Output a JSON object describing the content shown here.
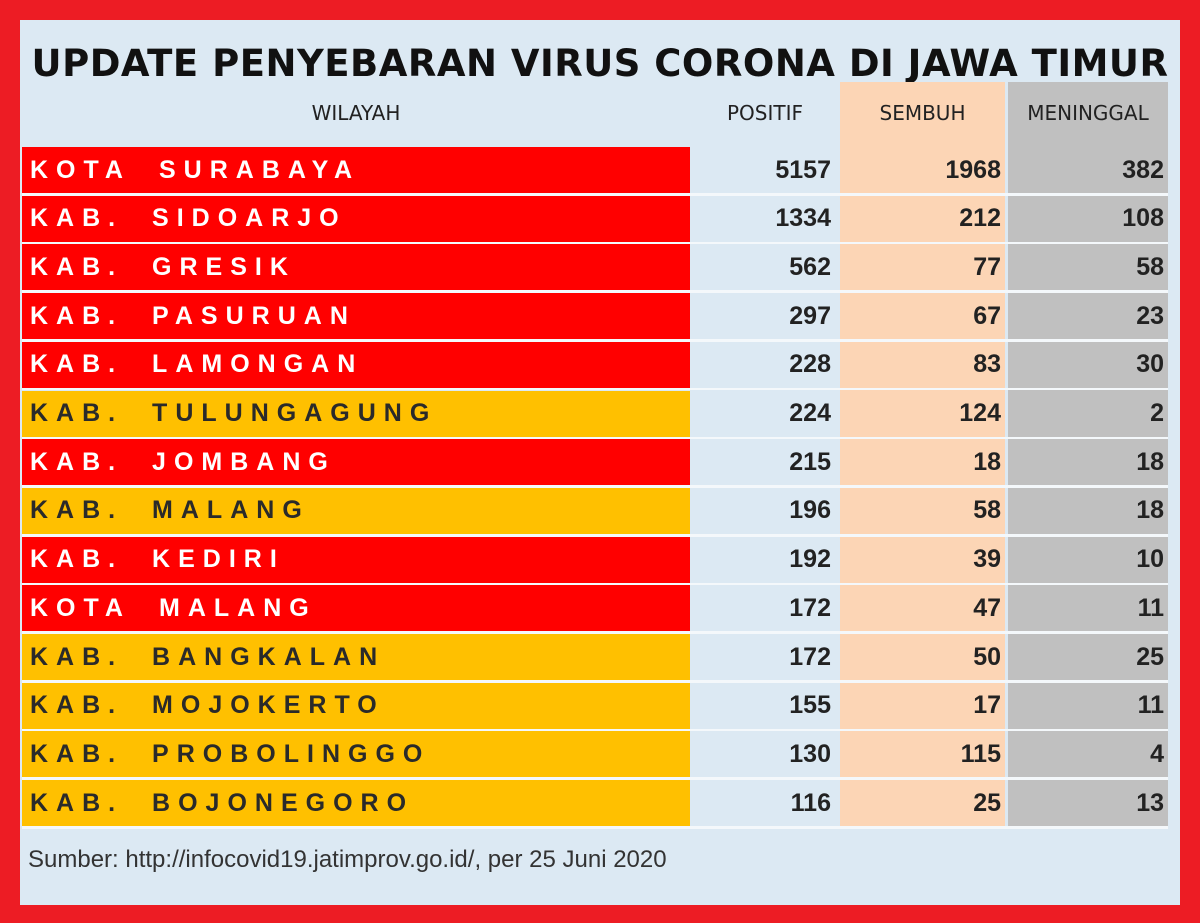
{
  "title": "UPDATE PENYEBARAN VIRUS CORONA DI JAWA TIMUR",
  "table": {
    "headers": [
      "WILAYAH",
      "POSITIF",
      "SEMBUH",
      "MENINGGAL"
    ],
    "header_colors": [
      "#dce9f3",
      "#dce9f3",
      "#fcd5b5",
      "#c0c0c0"
    ],
    "rows": [
      [
        "KOTA SURABAYA",
        "5157",
        "1968",
        "382"
      ],
      [
        "KAB. SIDOARJO",
        "1334",
        "212",
        "108"
      ],
      [
        "KAB. GRESIK",
        "562",
        "77",
        "58"
      ],
      [
        "KAB. PASURUAN",
        "297",
        "67",
        "23"
      ],
      [
        "KAB. LAMONGAN",
        "228",
        "83",
        "30"
      ],
      [
        "KAB. TULUNGAGUNG",
        "224",
        "124",
        "2"
      ],
      [
        "KAB. JOMBANG",
        "215",
        "18",
        "18"
      ],
      [
        "KAB. MALANG",
        "196",
        "58",
        "18"
      ],
      [
        "KAB. KEDIRI",
        "192",
        "39",
        "10"
      ],
      [
        "KOTA MALANG",
        "172",
        "47",
        "11"
      ],
      [
        "KAB. BANGKALAN",
        "172",
        "50",
        "25"
      ],
      [
        "KAB. MOJOKERTO",
        "155",
        "17",
        "11"
      ],
      [
        "KAB. PROBOLINGGO",
        "130",
        "115",
        "4"
      ],
      [
        "KAB. BOJONEGORO",
        "116",
        "25",
        "13"
      ]
    ],
    "row_colors": [
      "#ff0000",
      "#ff0000",
      "#ff0000",
      "#ff0000",
      "#ff0000",
      "#ffc000",
      "#ff0000",
      "#ffc000",
      "#ff0000",
      "#ff0000",
      "#ffc000",
      "#ffc000",
      "#ffc000",
      "#ffc000"
    ]
  },
  "source": "Sumber: http://infocovid19.jatimprov.go.id/, per 25 Juni 2020"
}
